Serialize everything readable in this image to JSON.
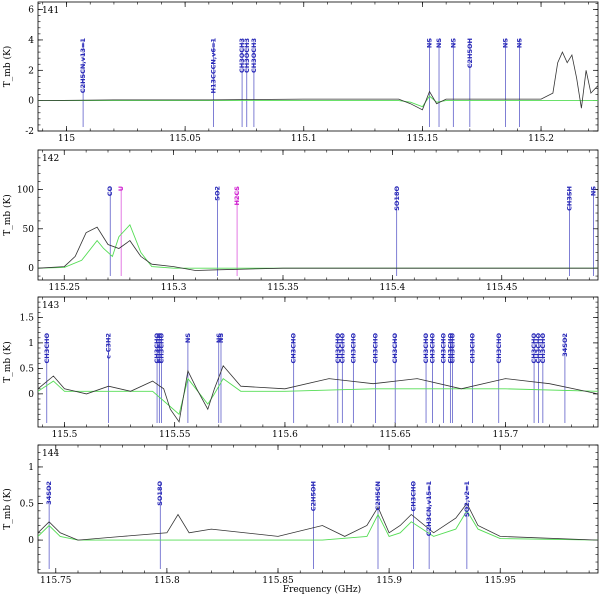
{
  "colors": {
    "observed": "#333333",
    "model": "#55dd55",
    "line_marker": "#2a2ab8",
    "line_marker_alt": "#d020d0"
  },
  "xlabel": "Frequency (GHz)",
  "ylabel": "T_mb (K)",
  "chart_data": [
    {
      "type": "line",
      "panel": "141",
      "xlim": [
        114.988,
        115.224
      ],
      "ylim": [
        -2.0,
        6.5
      ],
      "xticks": [
        115,
        115.05,
        115.1,
        115.15,
        115.2
      ],
      "xtick_labels": [
        "115",
        "115.05",
        "115.1",
        "115.15",
        "115.2"
      ],
      "yticks": [
        -2,
        0,
        2,
        4,
        6
      ],
      "series": [
        {
          "role": "observed",
          "x": [
            114.988,
            115.02,
            115.06,
            115.1,
            115.13,
            115.14,
            115.145,
            115.15,
            115.153,
            115.156,
            115.16,
            115.17,
            115.2,
            115.205,
            115.207,
            115.209,
            115.211,
            115.213,
            115.215,
            115.217,
            115.219,
            115.221,
            115.224
          ],
          "y": [
            0.0,
            0.05,
            0.05,
            0.1,
            0.1,
            0.1,
            -0.2,
            -0.6,
            0.6,
            -0.2,
            0.1,
            0.1,
            0.1,
            0.5,
            2.5,
            3.2,
            2.5,
            3.0,
            1.5,
            -0.5,
            2.0,
            0.5,
            1.0
          ]
        },
        {
          "role": "model",
          "x": [
            114.988,
            115.14,
            115.145,
            115.15,
            115.153,
            115.156,
            115.16,
            115.224
          ],
          "y": [
            0.0,
            0.0,
            -0.1,
            -0.4,
            0.3,
            -0.1,
            0.0,
            0.0
          ]
        }
      ],
      "lines": [
        {
          "x": 115.007,
          "label": "C2H5CN,v13=1",
          "color": "blue"
        },
        {
          "x": 115.062,
          "label": "H13CCCN,v6=1",
          "color": "blue"
        },
        {
          "x": 115.074,
          "label": "CH3OCH3",
          "color": "blue"
        },
        {
          "x": 115.076,
          "label": "CH3OCH3",
          "color": "blue"
        },
        {
          "x": 115.079,
          "label": "CH3OCH3",
          "color": "blue"
        },
        {
          "x": 115.153,
          "label": "NS",
          "color": "blue"
        },
        {
          "x": 115.157,
          "label": "NS",
          "color": "blue"
        },
        {
          "x": 115.163,
          "label": "NS",
          "color": "blue"
        },
        {
          "x": 115.17,
          "label": "C2H5OH",
          "color": "blue"
        },
        {
          "x": 115.185,
          "label": "NS",
          "color": "blue"
        },
        {
          "x": 115.191,
          "label": "NS",
          "color": "blue"
        }
      ]
    },
    {
      "type": "line",
      "panel": "142",
      "xlim": [
        115.238,
        115.494
      ],
      "ylim": [
        -15,
        150
      ],
      "xticks": [
        115.25,
        115.3,
        115.35,
        115.4,
        115.45
      ],
      "xtick_labels": [
        "115.25",
        "115.3",
        "115.35",
        "115.4",
        "115.45"
      ],
      "yticks": [
        0,
        50,
        100
      ],
      "series": [
        {
          "role": "observed",
          "x": [
            115.238,
            115.25,
            115.255,
            115.26,
            115.265,
            115.27,
            115.275,
            115.28,
            115.285,
            115.29,
            115.3,
            115.31,
            115.32,
            115.35,
            115.4,
            115.494
          ],
          "y": [
            0,
            2,
            15,
            45,
            52,
            30,
            25,
            35,
            15,
            5,
            2,
            -3,
            -2,
            0,
            0,
            0
          ]
        },
        {
          "role": "model",
          "x": [
            115.238,
            115.25,
            115.258,
            115.265,
            115.268,
            115.272,
            115.275,
            115.28,
            115.285,
            115.29,
            115.3,
            115.494
          ],
          "y": [
            0,
            1,
            10,
            35,
            25,
            15,
            40,
            55,
            20,
            2,
            0,
            0
          ]
        }
      ],
      "lines": [
        {
          "x": 115.271,
          "label": "CO",
          "color": "blue"
        },
        {
          "x": 115.276,
          "label": "U",
          "color": "magenta"
        },
        {
          "x": 115.32,
          "label": "SO2",
          "color": "blue"
        },
        {
          "x": 115.329,
          "label": "H2CS",
          "color": "magenta"
        },
        {
          "x": 115.402,
          "label": "SO18O",
          "color": "blue"
        },
        {
          "x": 115.481,
          "label": "CH3SH",
          "color": "blue"
        },
        {
          "x": 115.492,
          "label": "NS",
          "color": "blue"
        }
      ]
    },
    {
      "type": "line",
      "panel": "143",
      "xlim": [
        115.488,
        115.742
      ],
      "ylim": [
        -0.65,
        1.9
      ],
      "xticks": [
        115.5,
        115.55,
        115.6,
        115.65,
        115.7
      ],
      "xtick_labels": [
        "115.5",
        "115.55",
        "115.6",
        "115.65",
        "115.7"
      ],
      "yticks": [
        0,
        0.5,
        1,
        1.5
      ],
      "series": [
        {
          "role": "observed",
          "x": [
            115.488,
            115.495,
            115.5,
            115.51,
            115.52,
            115.53,
            115.54,
            115.545,
            115.548,
            115.552,
            115.556,
            115.56,
            115.565,
            115.568,
            115.572,
            115.58,
            115.6,
            115.62,
            115.64,
            115.66,
            115.68,
            115.7,
            115.72,
            115.742
          ],
          "y": [
            0.1,
            0.35,
            0.1,
            0.0,
            0.15,
            0.05,
            0.25,
            0.1,
            -0.3,
            -0.55,
            0.45,
            0.1,
            -0.3,
            0.1,
            0.55,
            0.15,
            0.1,
            0.3,
            0.2,
            0.3,
            0.1,
            0.3,
            0.2,
            0.0
          ]
        },
        {
          "role": "model",
          "x": [
            115.488,
            115.495,
            115.5,
            115.52,
            115.54,
            115.548,
            115.552,
            115.556,
            115.565,
            115.568,
            115.572,
            115.58,
            115.6,
            115.64,
            115.7,
            115.742
          ],
          "y": [
            0.05,
            0.25,
            0.05,
            0.05,
            0.05,
            -0.25,
            -0.4,
            0.3,
            -0.2,
            0.0,
            0.3,
            0.05,
            0.05,
            0.1,
            0.1,
            0.05
          ]
        }
      ],
      "lines": [
        {
          "x": 115.492,
          "label": "CH3CHO",
          "color": "blue"
        },
        {
          "x": 115.52,
          "label": "c-C3H2",
          "color": "blue"
        },
        {
          "x": 115.542,
          "label": "CH3CHO",
          "color": "blue"
        },
        {
          "x": 115.543,
          "label": "CH3CHO",
          "color": "blue"
        },
        {
          "x": 115.544,
          "label": "CH3CHO",
          "color": "blue"
        },
        {
          "x": 115.556,
          "label": "NS",
          "color": "blue"
        },
        {
          "x": 115.57,
          "label": "NS",
          "color": "blue"
        },
        {
          "x": 115.571,
          "label": "NS",
          "color": "blue"
        },
        {
          "x": 115.604,
          "label": "CH3CHO",
          "color": "blue"
        },
        {
          "x": 115.624,
          "label": "CH3CHO",
          "color": "blue"
        },
        {
          "x": 115.626,
          "label": "CH3CHO",
          "color": "blue"
        },
        {
          "x": 115.631,
          "label": "CH3CHO",
          "color": "blue"
        },
        {
          "x": 115.641,
          "label": "CH3CHO",
          "color": "blue"
        },
        {
          "x": 115.65,
          "label": "CH3CHO",
          "color": "blue"
        },
        {
          "x": 115.664,
          "label": "CH3CHO",
          "color": "blue"
        },
        {
          "x": 115.667,
          "label": "CH3CHO",
          "color": "blue"
        },
        {
          "x": 115.672,
          "label": "CH3CHO",
          "color": "blue"
        },
        {
          "x": 115.675,
          "label": "CH3CHO",
          "color": "blue"
        },
        {
          "x": 115.676,
          "label": "CH3CHO",
          "color": "blue"
        },
        {
          "x": 115.685,
          "label": "CH3CHO",
          "color": "blue"
        },
        {
          "x": 115.697,
          "label": "CH3CHO",
          "color": "blue"
        },
        {
          "x": 115.713,
          "label": "CH3CHO",
          "color": "blue"
        },
        {
          "x": 115.715,
          "label": "CH3CHO",
          "color": "blue"
        },
        {
          "x": 115.717,
          "label": "CH3CHO",
          "color": "blue"
        },
        {
          "x": 115.727,
          "label": "34SO2",
          "color": "blue"
        }
      ]
    },
    {
      "type": "line",
      "panel": "144",
      "xlim": [
        115.742,
        115.994
      ],
      "ylim": [
        -0.45,
        1.3
      ],
      "xticks": [
        115.75,
        115.8,
        115.85,
        115.9,
        115.95
      ],
      "xtick_labels": [
        "115.75",
        "115.8",
        "115.85",
        "115.9",
        "115.95"
      ],
      "yticks": [
        0,
        0.5,
        1
      ],
      "series": [
        {
          "role": "observed",
          "x": [
            115.742,
            115.747,
            115.752,
            115.76,
            115.78,
            115.8,
            115.805,
            115.81,
            115.82,
            115.85,
            115.87,
            115.88,
            115.89,
            115.895,
            115.9,
            115.905,
            115.91,
            115.92,
            115.93,
            115.935,
            115.94,
            115.95,
            115.994
          ],
          "y": [
            0.1,
            0.25,
            0.1,
            0.0,
            0.05,
            0.1,
            0.35,
            0.1,
            0.15,
            0.05,
            0.2,
            0.05,
            0.2,
            0.45,
            0.1,
            0.2,
            0.35,
            0.1,
            0.3,
            0.5,
            0.2,
            0.05,
            0.0
          ]
        },
        {
          "role": "model",
          "x": [
            115.742,
            115.747,
            115.752,
            115.76,
            115.87,
            115.89,
            115.895,
            115.9,
            115.905,
            115.91,
            115.92,
            115.93,
            115.935,
            115.94,
            115.95,
            115.994
          ],
          "y": [
            0.05,
            0.2,
            0.05,
            0.0,
            0.0,
            0.05,
            0.35,
            0.05,
            0.1,
            0.25,
            0.05,
            0.15,
            0.4,
            0.15,
            0.02,
            0.0
          ]
        }
      ],
      "lines": [
        {
          "x": 115.747,
          "label": "34SO2",
          "color": "blue"
        },
        {
          "x": 115.797,
          "label": "SO18O",
          "color": "blue"
        },
        {
          "x": 115.866,
          "label": "C2H5OH",
          "color": "blue"
        },
        {
          "x": 115.895,
          "label": "C2H5CN",
          "color": "blue"
        },
        {
          "x": 115.911,
          "label": "CH3CHO",
          "color": "blue"
        },
        {
          "x": 115.918,
          "label": "C2H3CN,v15=1",
          "color": "blue"
        },
        {
          "x": 115.935,
          "label": "SO2,v2=1",
          "color": "blue"
        }
      ]
    }
  ]
}
